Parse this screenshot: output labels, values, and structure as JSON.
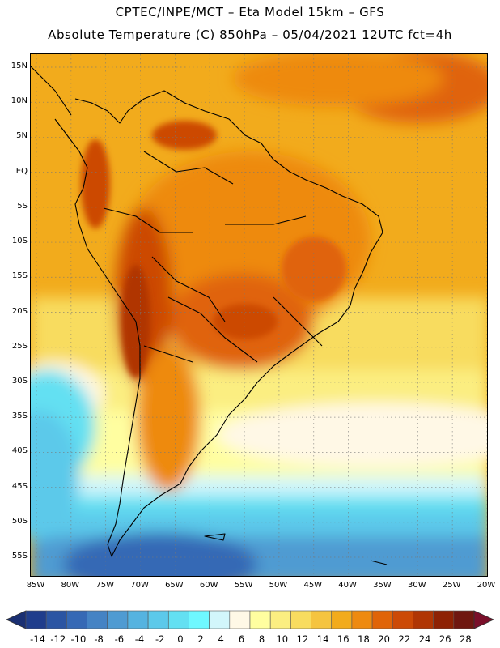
{
  "header": {
    "line1": "CPTEC/INPE/MCT –  Eta Model 15km – GFS",
    "line2": "Absolute Temperature (C) 850hPa – 05/04/2021 12UTC fct=4h"
  },
  "map": {
    "lat_labels": [
      "15N",
      "10N",
      "5N",
      "EQ",
      "5S",
      "10S",
      "15S",
      "20S",
      "25S",
      "30S",
      "35S",
      "40S",
      "45S",
      "50S",
      "55S"
    ],
    "lon_labels": [
      "85W",
      "80W",
      "75W",
      "70W",
      "65W",
      "60W",
      "55W",
      "50W",
      "45W",
      "40W",
      "35W",
      "30W",
      "25W",
      "20W"
    ],
    "lat_values": [
      15,
      10,
      5,
      0,
      -5,
      -10,
      -15,
      -20,
      -25,
      -30,
      -35,
      -40,
      -45,
      -50,
      -55
    ],
    "lon_values": [
      -85,
      -80,
      -75,
      -70,
      -65,
      -60,
      -55,
      -50,
      -45,
      -40,
      -35,
      -30,
      -25,
      -20
    ]
  },
  "colorbar": {
    "labels": [
      "-14",
      "-12",
      "-10",
      "-8",
      "-6",
      "-4",
      "-2",
      "0",
      "2",
      "4",
      "6",
      "8",
      "10",
      "12",
      "14",
      "16",
      "18",
      "20",
      "22",
      "24",
      "26",
      "28"
    ],
    "colors": [
      "#1f3d8c",
      "#2b55a3",
      "#3669b5",
      "#4583c4",
      "#4f9bd2",
      "#55b3e0",
      "#5cc9ea",
      "#63e0f2",
      "#6ef8ff",
      "#d2f6fb",
      "#fff8e6",
      "#fffea0",
      "#fbee81",
      "#f8dc5f",
      "#f5c43f",
      "#f2ab1c",
      "#ee8a10",
      "#e06408",
      "#cc4a06",
      "#b03604",
      "#8e2204",
      "#6f1710"
    ],
    "low_color": "#1a2f72",
    "high_color": "#7a0f2a"
  }
}
